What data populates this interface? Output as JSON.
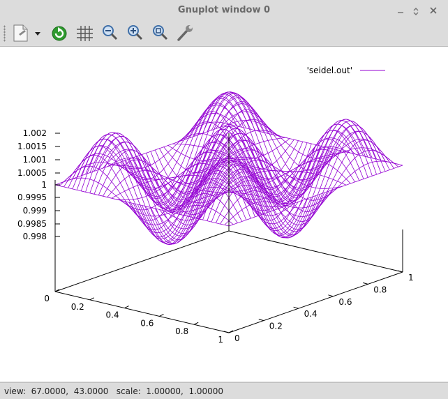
{
  "window": {
    "title": "Gnuplot window 0",
    "controls": [
      "minimize",
      "maximize",
      "close"
    ]
  },
  "toolbar": {
    "buttons": [
      {
        "name": "export",
        "icon": "document-icon"
      },
      {
        "name": "export-menu",
        "icon": "dropdown-arrow-icon"
      },
      {
        "name": "replot",
        "icon": "replot-icon"
      },
      {
        "name": "grid",
        "icon": "grid-icon"
      },
      {
        "name": "zoom-previous",
        "icon": "zoom-out-icon"
      },
      {
        "name": "zoom-next",
        "icon": "zoom-in-icon"
      },
      {
        "name": "autoscale",
        "icon": "zoom-fit-icon"
      },
      {
        "name": "config",
        "icon": "wrench-icon"
      }
    ]
  },
  "status": {
    "text": "view:  67.0000,  43.0000   scale:  1.00000,  1.00000"
  },
  "chart_data": {
    "type": "surface",
    "title": "",
    "legend": {
      "label": "'seidel.out'",
      "placement": "top-right",
      "color": "#9400d3"
    },
    "z_ticks": [
      "1.002",
      "1.0015",
      "1.001",
      "1.0005",
      "1",
      "0.9995",
      "0.999",
      "0.9985",
      "0.998"
    ],
    "x_ticks": [
      "0",
      "0.2",
      "0.4",
      "0.6",
      "0.8",
      "1"
    ],
    "y_ticks": [
      "0",
      "0.2",
      "0.4",
      "0.6",
      "0.8",
      "1"
    ],
    "x_range": [
      0,
      1
    ],
    "y_range": [
      0,
      1
    ],
    "z_range": [
      0.998,
      1.002
    ],
    "view": {
      "rot_x": 67,
      "rot_z": 43,
      "scale": 1,
      "scale_z": 1
    },
    "surface": {
      "function": "1 + 0.0015*sin(3*pi*x)*sin(3*pi*y)",
      "grid_x": 40,
      "grid_y": 40
    },
    "color": "#9400d3",
    "grid": false
  }
}
